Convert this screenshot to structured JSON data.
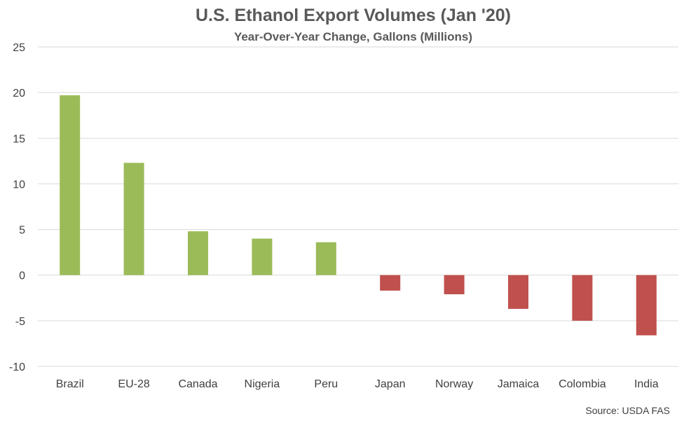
{
  "chart_data": {
    "type": "bar",
    "title": "U.S. Ethanol Export Volumes (Jan '20)",
    "subtitle": "Year-Over-Year Change, Gallons (Millions)",
    "categories": [
      "Brazil",
      "EU-28",
      "Canada",
      "Nigeria",
      "Peru",
      "Japan",
      "Norway",
      "Jamaica",
      "Colombia",
      "India"
    ],
    "values": [
      19.7,
      12.3,
      4.8,
      4.0,
      3.6,
      -1.7,
      -2.1,
      -3.7,
      -5.0,
      -6.6
    ],
    "ylim": [
      -10,
      25
    ],
    "yticks": [
      25,
      20,
      15,
      10,
      5,
      0,
      -5,
      -10
    ],
    "grid": true,
    "xlabel": "",
    "ylabel": "",
    "colors": {
      "positive": "#9bbb59",
      "negative": "#c0504d",
      "grid": "#d9d9d9",
      "zero_line": "#d9d9d9"
    },
    "source": "Source: USDA FAS"
  }
}
